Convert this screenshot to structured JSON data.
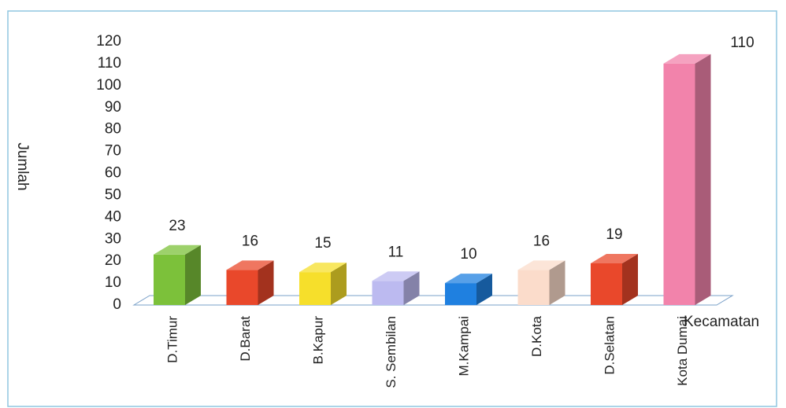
{
  "chart_data": {
    "type": "bar3d",
    "categories": [
      "D.Timur",
      "D.Barat",
      "B.Kapur",
      "S. Sembilan",
      "M.Kampai",
      "D.Kota",
      "D.Selatan",
      "Kota Dumai"
    ],
    "values": [
      23,
      16,
      15,
      11,
      10,
      16,
      19,
      110
    ],
    "colors": [
      "#7cc13a",
      "#e9482b",
      "#f6df2b",
      "#bcbaf0",
      "#1f80e0",
      "#fbdccb",
      "#e9482b",
      "#f283ab"
    ],
    "ylim": [
      0,
      120
    ],
    "yticks": [
      0,
      10,
      20,
      30,
      40,
      50,
      60,
      70,
      80,
      90,
      100,
      110,
      120
    ],
    "y_label": "Jumlah",
    "x_label": "Kecamatan",
    "grid": false
  }
}
